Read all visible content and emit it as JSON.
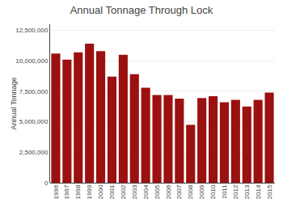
{
  "chart_data": {
    "type": "bar",
    "title": "Annual Tonnage Through Lock",
    "ylabel": "Annual Tonnage",
    "categories": [
      "1996",
      "1997",
      "1998",
      "1999",
      "2000",
      "2001",
      "2002",
      "2003",
      "2004",
      "2005",
      "2006",
      "2007",
      "2008",
      "2009",
      "2010",
      "2011",
      "2012",
      "2013",
      "2014",
      "2015"
    ],
    "values": [
      10600000,
      10100000,
      10700000,
      11400000,
      10800000,
      8700000,
      10500000,
      8900000,
      7800000,
      7200000,
      7200000,
      6900000,
      4750000,
      6950000,
      7100000,
      6600000,
      6800000,
      6250000,
      6800000,
      7400000
    ],
    "color": "#9B1010",
    "ylim": [
      0,
      13000000
    ],
    "yticks": [
      0,
      {
        "value": 2500000,
        "label": "2,500,000"
      },
      {
        "value": 5000000,
        "label": "5,000,000"
      },
      {
        "value": 7500000,
        "label": "7,500,000"
      },
      {
        "value": 10000000,
        "label": "10,000,000"
      },
      {
        "value": 12500000,
        "label": "12,500,000"
      }
    ],
    "grid": true
  }
}
